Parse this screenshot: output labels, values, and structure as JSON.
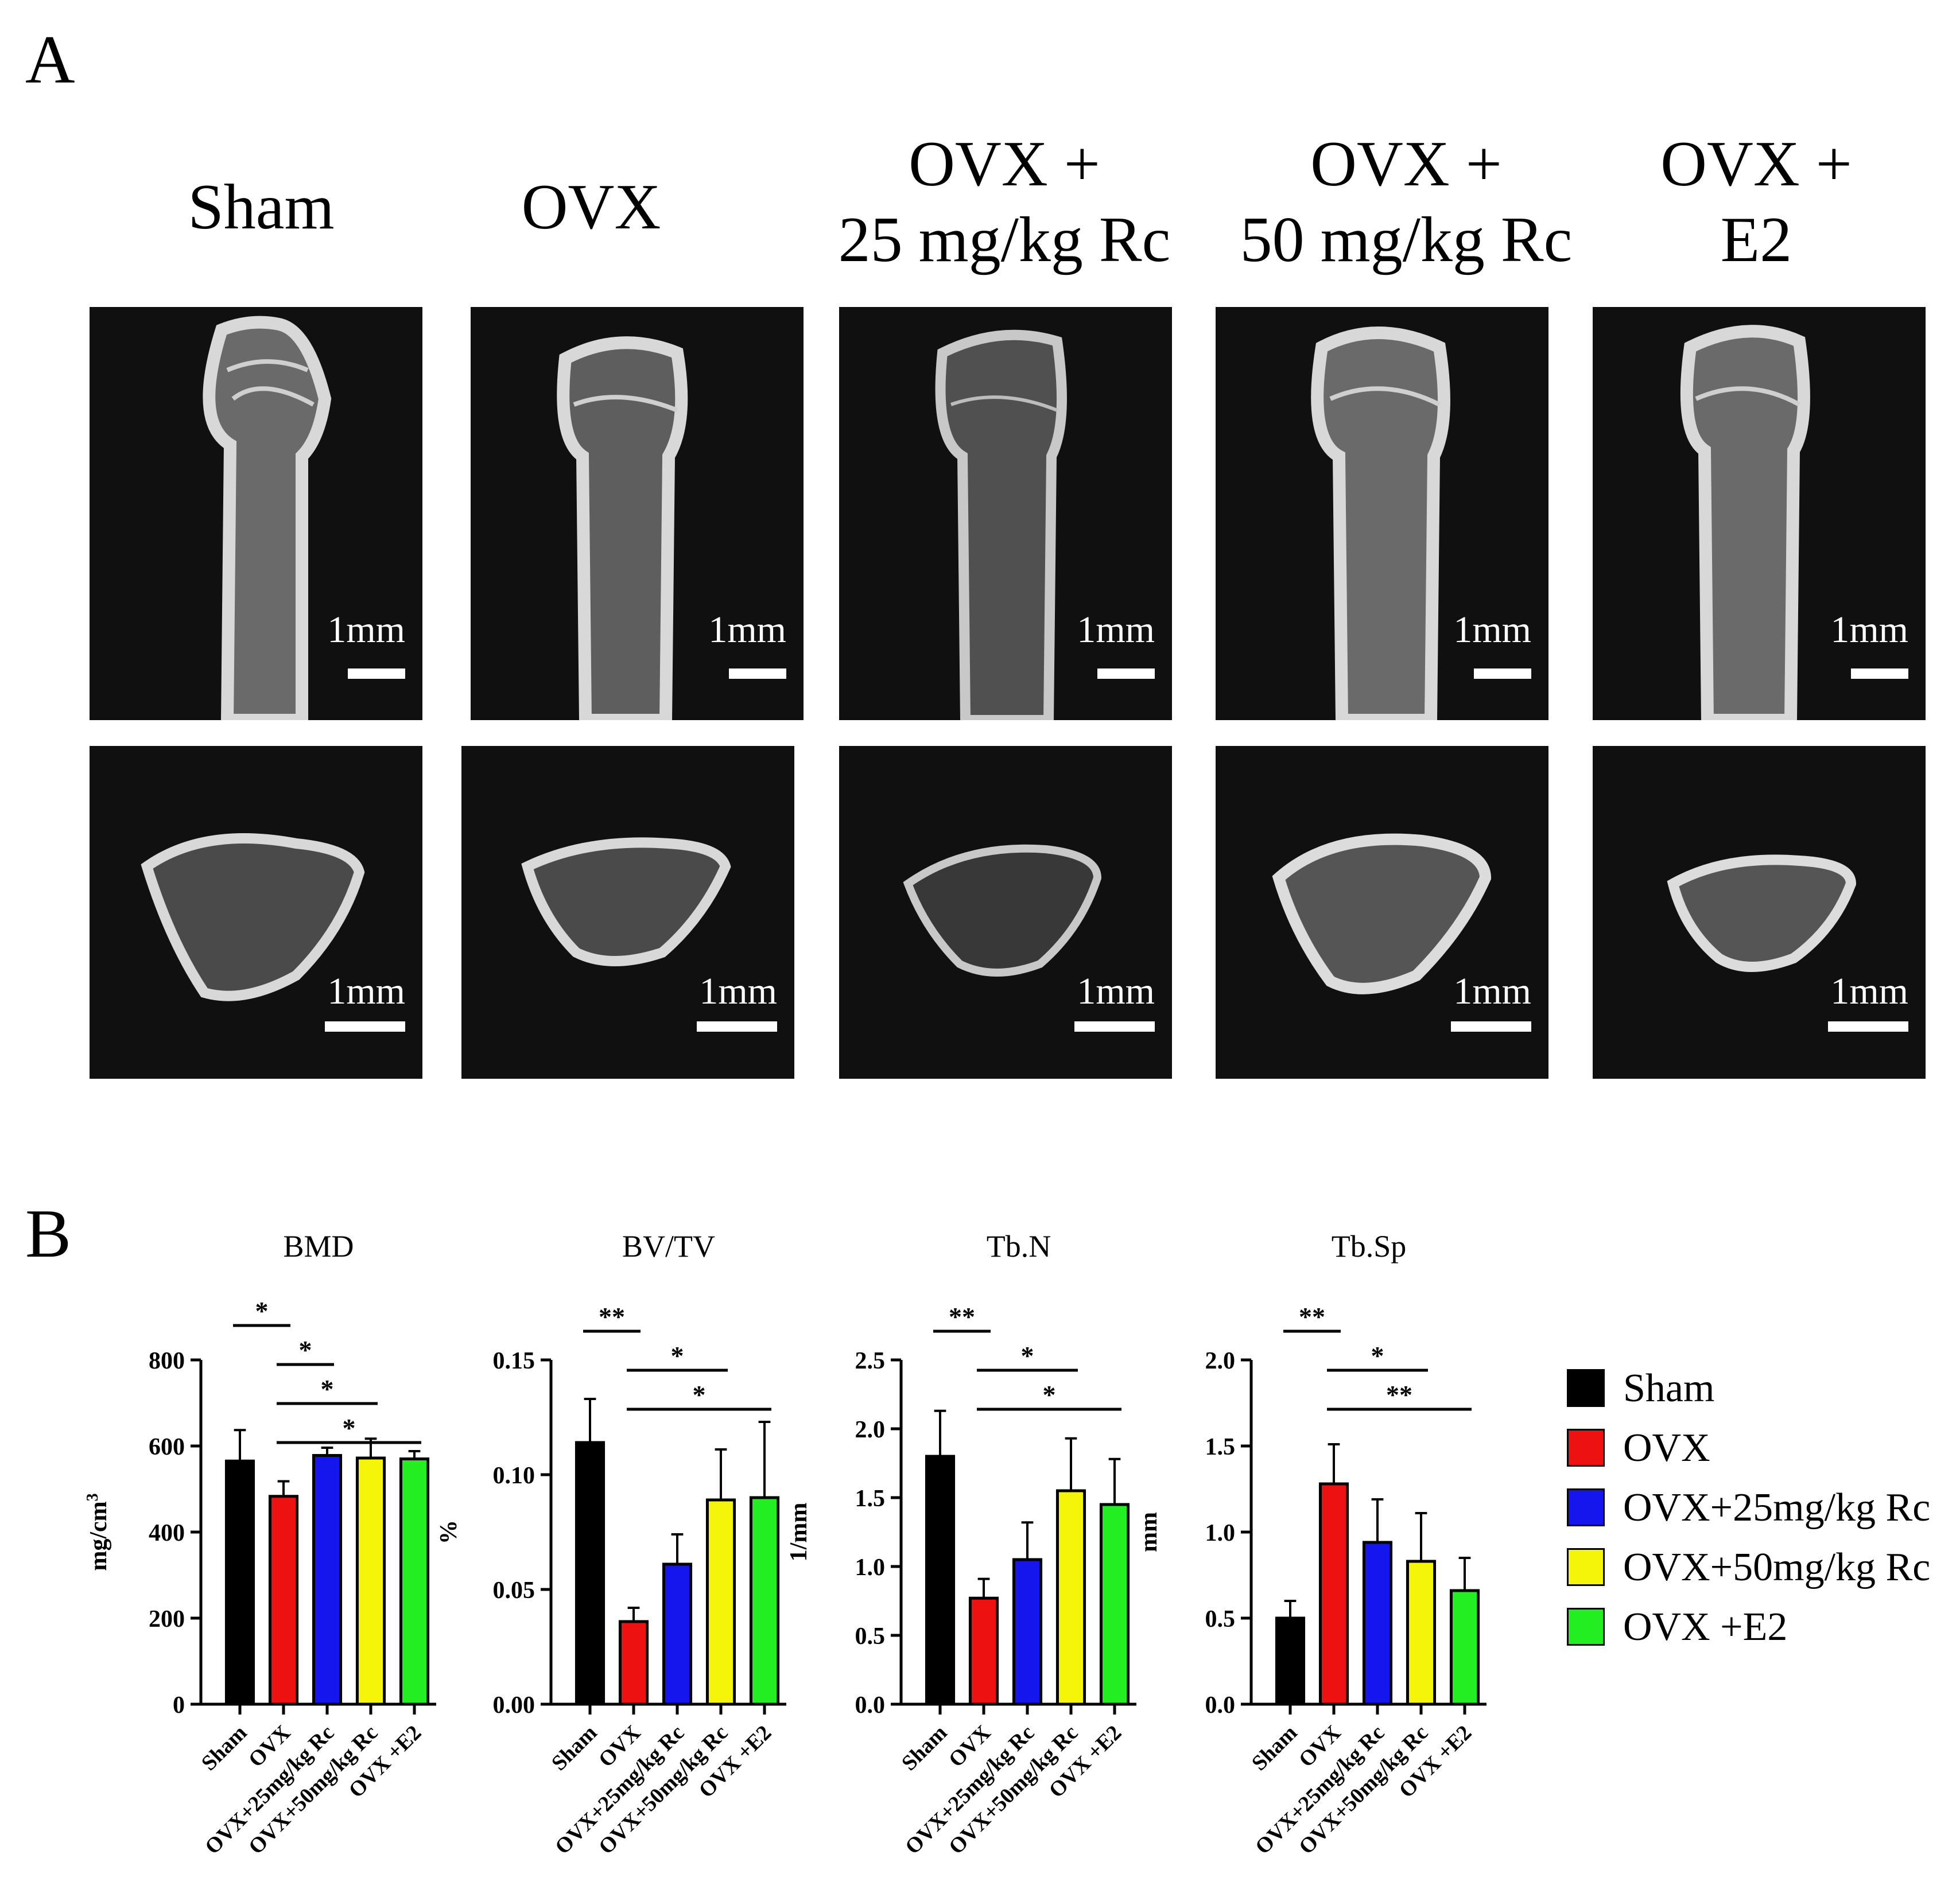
{
  "panel_a": {
    "letter": "A",
    "groups": [
      {
        "line1": "Sham",
        "line2": ""
      },
      {
        "line1": "OVX",
        "line2": ""
      },
      {
        "line1": "OVX +",
        "line2": "25 mg/kg Rc"
      },
      {
        "line1": "OVX +",
        "line2": "50 mg/kg Rc"
      },
      {
        "line1": "OVX +",
        "line2": "E2"
      }
    ],
    "scale_label": "1mm"
  },
  "panel_b": {
    "letter": "B"
  },
  "legend": [
    {
      "label": "Sham",
      "color": "#000000"
    },
    {
      "label": "OVX",
      "color": "#ee1111"
    },
    {
      "label": "OVX+25mg/kg Rc",
      "color": "#1515ee"
    },
    {
      "label": "OVX+50mg/kg Rc",
      "color": "#f5f50a"
    },
    {
      "label": "OVX +E2",
      "color": "#22ee22"
    }
  ],
  "chart_data": [
    {
      "type": "bar",
      "title": "BMD",
      "ylabel": "mg/cm",
      "ylabel_sup": "3",
      "ylim": [
        0,
        800
      ],
      "yticks": [
        0,
        200,
        400,
        600,
        800
      ],
      "ytick_labels": [
        "0",
        "200",
        "400",
        "600",
        "800"
      ],
      "categories": [
        "Sham",
        "OVX",
        "OVX+25mg/kg Rc",
        "OVX+50mg/kg Rc",
        "OVX +E2"
      ],
      "values": [
        565,
        483,
        578,
        572,
        570
      ],
      "errors": [
        72,
        35,
        18,
        45,
        18
      ],
      "colors": [
        "#000000",
        "#ee1111",
        "#1515ee",
        "#f5f50a",
        "#22ee22"
      ],
      "significance": [
        {
          "from": 0,
          "to": 1,
          "label": "*"
        },
        {
          "from": 1,
          "to": 2,
          "label": "*"
        },
        {
          "from": 1,
          "to": 3,
          "label": "*"
        },
        {
          "from": 1,
          "to": 4,
          "label": "*"
        }
      ]
    },
    {
      "type": "bar",
      "title": "BV/TV",
      "ylabel": "%",
      "ylabel_sup": "",
      "ylim": [
        0,
        0.15
      ],
      "yticks": [
        0,
        0.05,
        0.1,
        0.15
      ],
      "ytick_labels": [
        "0.00",
        "0.05",
        "0.10",
        "0.15"
      ],
      "categories": [
        "Sham",
        "OVX",
        "OVX+25mg/kg Rc",
        "OVX+50mg/kg Rc",
        "OVX +E2"
      ],
      "values": [
        0.114,
        0.036,
        0.061,
        0.089,
        0.09
      ],
      "errors": [
        0.019,
        0.006,
        0.013,
        0.022,
        0.033
      ],
      "colors": [
        "#000000",
        "#ee1111",
        "#1515ee",
        "#f5f50a",
        "#22ee22"
      ],
      "significance": [
        {
          "from": 0,
          "to": 1,
          "label": "**"
        },
        {
          "from": 1,
          "to": 3,
          "label": "*"
        },
        {
          "from": 1,
          "to": 4,
          "label": "*"
        }
      ]
    },
    {
      "type": "bar",
      "title": "Tb.N",
      "ylabel": "1/mm",
      "ylabel_sup": "",
      "ylim": [
        0,
        2.5
      ],
      "yticks": [
        0,
        0.5,
        1,
        1.5,
        2,
        2.5
      ],
      "ytick_labels": [
        "0.0",
        "0.5",
        "1.0",
        "1.5",
        "2.0",
        "2.5"
      ],
      "categories": [
        "Sham",
        "OVX",
        "OVX+25mg/kg Rc",
        "OVX+50mg/kg Rc",
        "OVX +E2"
      ],
      "values": [
        1.8,
        0.77,
        1.05,
        1.55,
        1.45
      ],
      "errors": [
        0.33,
        0.14,
        0.27,
        0.38,
        0.33
      ],
      "colors": [
        "#000000",
        "#ee1111",
        "#1515ee",
        "#f5f50a",
        "#22ee22"
      ],
      "significance": [
        {
          "from": 0,
          "to": 1,
          "label": "**"
        },
        {
          "from": 1,
          "to": 3,
          "label": "*"
        },
        {
          "from": 1,
          "to": 4,
          "label": "*"
        }
      ]
    },
    {
      "type": "bar",
      "title": "Tb.Sp",
      "ylabel": "mm",
      "ylabel_sup": "",
      "ylim": [
        0,
        2
      ],
      "yticks": [
        0,
        0.5,
        1,
        1.5,
        2
      ],
      "ytick_labels": [
        "0.0",
        "0.5",
        "1.0",
        "1.5",
        "2.0"
      ],
      "categories": [
        "Sham",
        "OVX",
        "OVX+25mg/kg Rc",
        "OVX+50mg/kg Rc",
        "OVX +E2"
      ],
      "values": [
        0.5,
        1.28,
        0.94,
        0.83,
        0.66
      ],
      "errors": [
        0.1,
        0.23,
        0.25,
        0.28,
        0.19
      ],
      "colors": [
        "#000000",
        "#ee1111",
        "#1515ee",
        "#f5f50a",
        "#22ee22"
      ],
      "significance": [
        {
          "from": 0,
          "to": 1,
          "label": "**"
        },
        {
          "from": 1,
          "to": 3,
          "label": "*"
        },
        {
          "from": 1,
          "to": 4,
          "label": "**"
        }
      ]
    }
  ]
}
